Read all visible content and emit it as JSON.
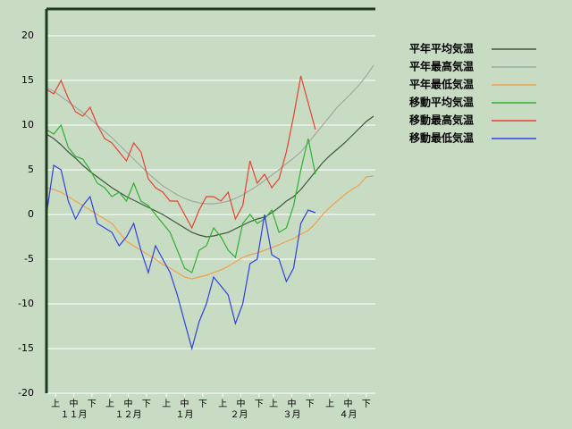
{
  "chart_data": {
    "type": "line",
    "x": [
      0,
      4,
      8,
      12,
      16,
      20,
      24,
      28,
      32,
      36,
      40,
      44,
      48,
      52,
      56,
      60,
      64,
      68,
      72,
      76,
      80,
      84,
      88,
      92,
      96,
      100,
      104,
      108,
      112,
      116,
      120,
      124,
      128,
      132,
      136,
      140,
      144,
      148,
      152,
      156,
      160,
      164,
      168,
      172,
      176,
      180
    ],
    "xlim": [
      0,
      181
    ],
    "xticks": [
      {
        "value": 5,
        "label": "上"
      },
      {
        "value": 15,
        "label": "中"
      },
      {
        "value": 25,
        "label": "下"
      },
      {
        "value": 35,
        "label": "上"
      },
      {
        "value": 45,
        "label": "中"
      },
      {
        "value": 55,
        "label": "下"
      },
      {
        "value": 66,
        "label": "上"
      },
      {
        "value": 76,
        "label": "中"
      },
      {
        "value": 86,
        "label": "下"
      },
      {
        "value": 97,
        "label": "上"
      },
      {
        "value": 107,
        "label": "中"
      },
      {
        "value": 117,
        "label": "下"
      },
      {
        "value": 125,
        "label": "上"
      },
      {
        "value": 135,
        "label": "中"
      },
      {
        "value": 145,
        "label": "下"
      },
      {
        "value": 156,
        "label": "上"
      },
      {
        "value": 166,
        "label": "中"
      },
      {
        "value": 176,
        "label": "下"
      }
    ],
    "month_labels": [
      {
        "value": 15,
        "label": "１１月"
      },
      {
        "value": 45,
        "label": "１２月"
      },
      {
        "value": 76,
        "label": "１月"
      },
      {
        "value": 106,
        "label": "２月"
      },
      {
        "value": 135,
        "label": "３月"
      },
      {
        "value": 166,
        "label": "４月"
      }
    ],
    "ylim": [
      -20,
      23
    ],
    "yticks": [
      -20,
      -15,
      -10,
      -5,
      0,
      5,
      10,
      15,
      20
    ],
    "grid": true,
    "legend": "right",
    "series": [
      {
        "name": "平年平均気温",
        "color": "#3c5a3c",
        "values": [
          9.0,
          8.5,
          7.8,
          7.0,
          6.3,
          5.5,
          4.8,
          4.2,
          3.6,
          3.0,
          2.5,
          2.0,
          1.6,
          1.2,
          0.8,
          0.4,
          0.0,
          -0.5,
          -1.0,
          -1.5,
          -2.0,
          -2.3,
          -2.5,
          -2.4,
          -2.2,
          -2.0,
          -1.6,
          -1.2,
          -0.8,
          -0.5,
          -0.3,
          0.2,
          0.8,
          1.5,
          2.0,
          2.8,
          3.8,
          4.8,
          5.8,
          6.6,
          7.3,
          8.0,
          8.8,
          9.6,
          10.4,
          11.0
        ]
      },
      {
        "name": "平年最高気温",
        "color": "#a0aaa0",
        "values": [
          14.2,
          13.8,
          13.2,
          12.6,
          12.0,
          11.4,
          10.7,
          10.0,
          9.3,
          8.6,
          7.8,
          7.0,
          6.2,
          5.4,
          4.6,
          3.9,
          3.2,
          2.7,
          2.2,
          1.8,
          1.5,
          1.3,
          1.2,
          1.2,
          1.3,
          1.5,
          1.8,
          2.2,
          2.7,
          3.2,
          3.8,
          4.4,
          5.0,
          5.7,
          6.3,
          7.0,
          8.0,
          9.0,
          10.0,
          11.0,
          12.0,
          12.8,
          13.6,
          14.5,
          15.5,
          16.7
        ]
      },
      {
        "name": "平年最低気温",
        "color": "#f0a050",
        "values": [
          3.0,
          2.8,
          2.5,
          2.0,
          1.5,
          1.0,
          0.5,
          0.0,
          -0.5,
          -1.0,
          -2.0,
          -3.0,
          -3.5,
          -4.0,
          -4.5,
          -5.0,
          -5.6,
          -6.0,
          -6.5,
          -7.0,
          -7.2,
          -7.0,
          -6.8,
          -6.5,
          -6.2,
          -5.8,
          -5.3,
          -4.8,
          -4.5,
          -4.3,
          -4.0,
          -3.7,
          -3.4,
          -3.0,
          -2.7,
          -2.2,
          -1.8,
          -1.0,
          0.0,
          0.8,
          1.5,
          2.2,
          2.8,
          3.3,
          4.2,
          4.3
        ]
      },
      {
        "name": "移動平均気温",
        "color": "#30b030",
        "values": [
          9.5,
          9.0,
          10.0,
          7.5,
          6.5,
          6.2,
          5.0,
          3.5,
          3.0,
          2.0,
          2.5,
          1.5,
          3.5,
          1.5,
          1.0,
          0.0,
          -1.0,
          -2.0,
          -4.0,
          -6.0,
          -6.5,
          -4.0,
          -3.5,
          -1.5,
          -2.5,
          -4.0,
          -4.8,
          -1.0,
          0.0,
          -1.0,
          -0.5,
          0.5,
          -2.0,
          -1.5,
          1.0,
          5.0,
          8.5,
          4.5,
          null,
          null,
          null,
          null,
          null,
          null,
          null,
          null
        ]
      },
      {
        "name": "移動最高気温",
        "color": "#e84030",
        "values": [
          14.0,
          13.5,
          15.0,
          13.0,
          11.5,
          11.0,
          12.0,
          10.0,
          8.5,
          8.0,
          7.0,
          6.0,
          8.0,
          7.0,
          4.0,
          3.0,
          2.5,
          1.5,
          1.5,
          0.0,
          -1.5,
          0.5,
          2.0,
          2.0,
          1.5,
          2.5,
          -0.5,
          1.0,
          6.0,
          3.5,
          4.5,
          3.0,
          4.0,
          7.0,
          11.0,
          15.5,
          12.5,
          9.5,
          null,
          null,
          null,
          null,
          null,
          null,
          null,
          null
        ]
      },
      {
        "name": "移動最低気温",
        "color": "#3040e0",
        "values": [
          0.0,
          5.5,
          5.0,
          1.5,
          -0.5,
          1.0,
          2.0,
          -1.0,
          -1.5,
          -2.0,
          -3.5,
          -2.5,
          -1.0,
          -4.0,
          -6.5,
          -3.5,
          -5.0,
          -6.5,
          -9.0,
          -12.0,
          -15.0,
          -12.0,
          -10.0,
          -7.0,
          -8.0,
          -9.0,
          -12.2,
          -10.0,
          -5.5,
          -5.0,
          0.0,
          -4.5,
          -5.0,
          -7.5,
          -6.0,
          -1.0,
          0.5,
          0.2,
          null,
          null,
          null,
          null,
          null,
          null,
          null,
          null
        ]
      }
    ]
  }
}
